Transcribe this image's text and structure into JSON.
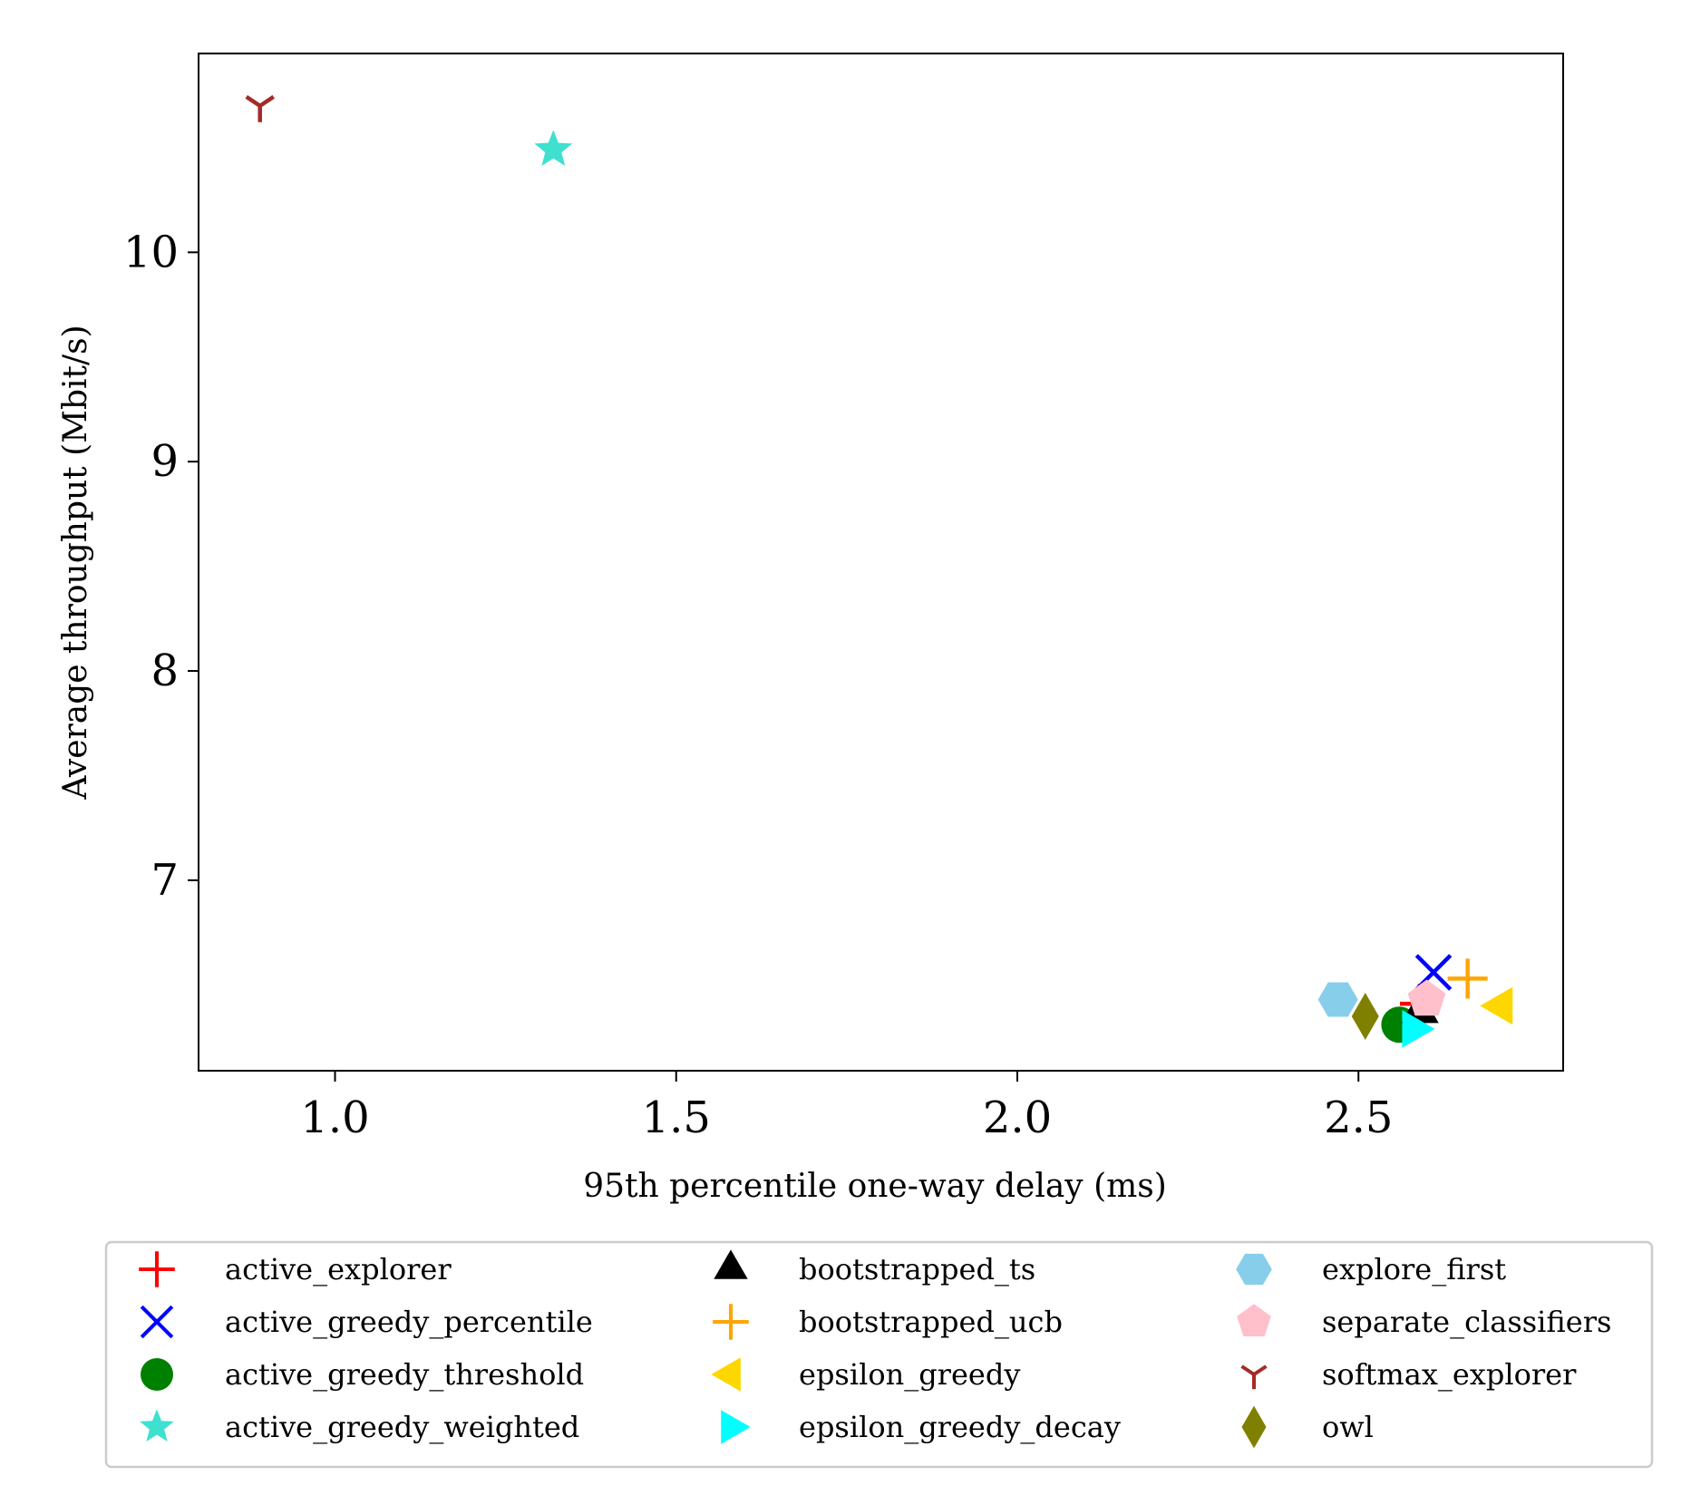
{
  "chart_data": {
    "type": "scatter",
    "xlabel": "95th percentile one-way delay (ms)",
    "ylabel": "Average throughput (Mbit/s)",
    "xlim": [
      0.8,
      2.8
    ],
    "ylim": [
      6.09,
      10.95
    ],
    "xticks": [
      1.0,
      1.5,
      2.0,
      2.5
    ],
    "xtick_labels": [
      "1.0",
      "1.5",
      "2.0",
      "2.5"
    ],
    "yticks": [
      7,
      8,
      9,
      10
    ],
    "ytick_labels": [
      "7",
      "8",
      "9",
      "10"
    ],
    "grid": false,
    "legend_position": "bottom",
    "legend_columns": 3,
    "series": [
      {
        "name": "active_explorer",
        "marker": "plus-thin",
        "color": "#ff0000",
        "x": 2.59,
        "y": 6.41
      },
      {
        "name": "active_greedy_percentile",
        "marker": "x",
        "color": "#0000ff",
        "x": 2.61,
        "y": 6.56
      },
      {
        "name": "active_greedy_threshold",
        "marker": "circle",
        "color": "#008000",
        "x": 2.56,
        "y": 6.31
      },
      {
        "name": "active_greedy_weighted",
        "marker": "star",
        "color": "#40e0d0",
        "x": 1.32,
        "y": 10.49
      },
      {
        "name": "bootstrapped_ts",
        "marker": "triangle-up",
        "color": "#000000",
        "x": 2.59,
        "y": 6.37
      },
      {
        "name": "bootstrapped_ucb",
        "marker": "plus",
        "color": "#ffa500",
        "x": 2.66,
        "y": 6.53
      },
      {
        "name": "epsilon_greedy",
        "marker": "triangle-left",
        "color": "#ffd700",
        "x": 2.71,
        "y": 6.4
      },
      {
        "name": "epsilon_greedy_decay",
        "marker": "triangle-right",
        "color": "#00ffff",
        "x": 2.58,
        "y": 6.29
      },
      {
        "name": "explore_first",
        "marker": "hexagon",
        "color": "#87ceeb",
        "x": 2.47,
        "y": 6.43
      },
      {
        "name": "separate_classifiers",
        "marker": "pentagon",
        "color": "#ffc0cb",
        "x": 2.6,
        "y": 6.43
      },
      {
        "name": "softmax_explorer",
        "marker": "tri-down",
        "color": "#a52a2a",
        "x": 0.89,
        "y": 10.7
      },
      {
        "name": "owl",
        "marker": "diamond",
        "color": "#808000",
        "x": 2.51,
        "y": 6.35
      }
    ]
  }
}
